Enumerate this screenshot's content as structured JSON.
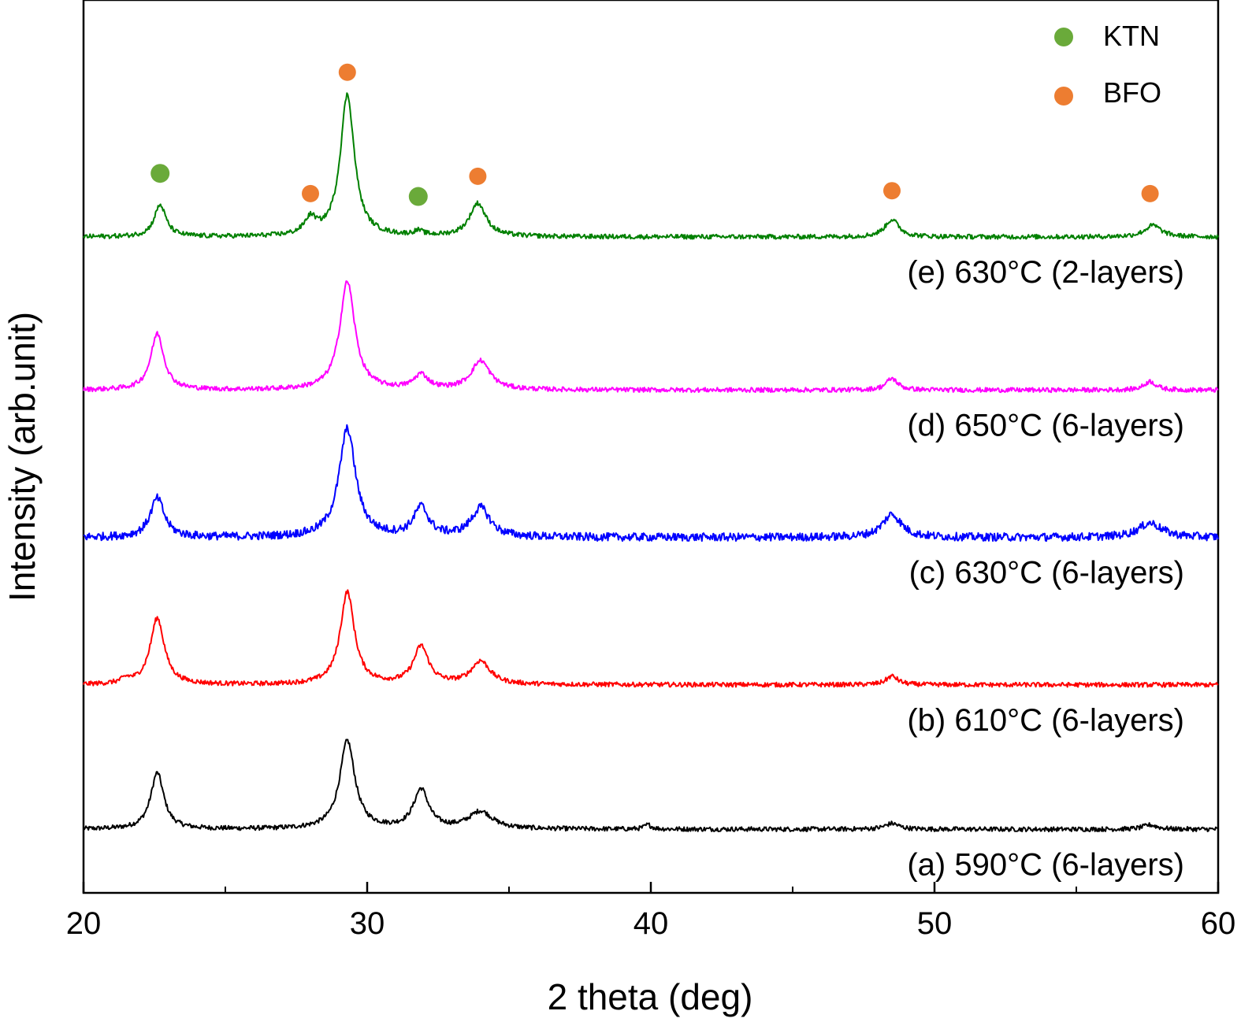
{
  "chart_data": {
    "type": "line",
    "xlabel": "2 theta (deg)",
    "ylabel": "Intensity (arb.unit)",
    "xlim": [
      20,
      60
    ],
    "x_ticks": [
      20,
      30,
      40,
      50,
      60
    ],
    "x_minor_ticks": [
      25,
      35,
      45,
      55
    ],
    "y_ticks_shown": false,
    "grid": false,
    "legend": {
      "placement": "top-right",
      "entries": [
        {
          "name": "KTN",
          "color": "#6aaa3a",
          "marker": "circle"
        },
        {
          "name": "BFO",
          "color": "#ed7d31",
          "marker": "circle"
        }
      ]
    },
    "series": [
      {
        "name": "(a) 590°C (6-layers)",
        "color": "#000000",
        "baseline": 0,
        "noise": 0.08,
        "peaks": [
          [
            22.6,
            1.95,
            0.28
          ],
          [
            29.3,
            3.05,
            0.32
          ],
          [
            31.9,
            1.35,
            0.32
          ],
          [
            34.0,
            0.6,
            0.5
          ],
          [
            39.9,
            0.15,
            0.15
          ],
          [
            48.5,
            0.2,
            0.3
          ],
          [
            57.6,
            0.15,
            0.3
          ]
        ]
      },
      {
        "name": "(b) 610°C (6-layers)",
        "color": "#ff0000",
        "baseline": 5.0,
        "noise": 0.08,
        "peaks": [
          [
            21.5,
            0.15,
            0.2
          ],
          [
            22.6,
            2.3,
            0.3
          ],
          [
            29.3,
            3.2,
            0.3
          ],
          [
            31.9,
            1.3,
            0.32
          ],
          [
            34.0,
            0.8,
            0.4
          ],
          [
            48.5,
            0.3,
            0.25
          ]
        ]
      },
      {
        "name": "(c) 630°C (6-layers)",
        "color": "#0000ff",
        "baseline": 10.1,
        "noise": 0.14,
        "peaks": [
          [
            22.6,
            1.35,
            0.3
          ],
          [
            29.3,
            3.75,
            0.35
          ],
          [
            31.9,
            1.0,
            0.32
          ],
          [
            34.0,
            1.0,
            0.4
          ],
          [
            48.5,
            0.8,
            0.4
          ],
          [
            57.6,
            0.5,
            0.5
          ]
        ]
      },
      {
        "name": "(d) 650°C (6-layers)",
        "color": "#ff00ff",
        "baseline": 15.2,
        "noise": 0.08,
        "peaks": [
          [
            22.6,
            1.95,
            0.28
          ],
          [
            29.3,
            3.75,
            0.32
          ],
          [
            31.9,
            0.5,
            0.3
          ],
          [
            34.0,
            1.0,
            0.4
          ],
          [
            48.5,
            0.4,
            0.25
          ],
          [
            57.6,
            0.3,
            0.25
          ]
        ]
      },
      {
        "name": "(e) 630°C (2-layers)",
        "color": "#008000",
        "baseline": 20.5,
        "noise": 0.08,
        "peaks": [
          [
            22.7,
            1.1,
            0.25
          ],
          [
            28.0,
            0.55,
            0.25
          ],
          [
            29.3,
            4.9,
            0.3
          ],
          [
            31.8,
            0.15,
            0.2
          ],
          [
            33.9,
            1.15,
            0.35
          ],
          [
            48.5,
            0.6,
            0.3
          ],
          [
            57.7,
            0.4,
            0.35
          ]
        ]
      }
    ],
    "phase_markers": [
      {
        "phase": "KTN",
        "x": 22.7,
        "y": 22.7
      },
      {
        "phase": "BFO",
        "x": 28.0,
        "y": 22.0
      },
      {
        "phase": "BFO",
        "x": 29.3,
        "y": 26.2
      },
      {
        "phase": "KTN",
        "x": 31.8,
        "y": 21.9
      },
      {
        "phase": "BFO",
        "x": 33.9,
        "y": 22.6
      },
      {
        "phase": "BFO",
        "x": 48.5,
        "y": 22.1
      },
      {
        "phase": "BFO",
        "x": 57.6,
        "y": 22.0
      }
    ],
    "ylim": [
      -2.2,
      28.7
    ]
  }
}
